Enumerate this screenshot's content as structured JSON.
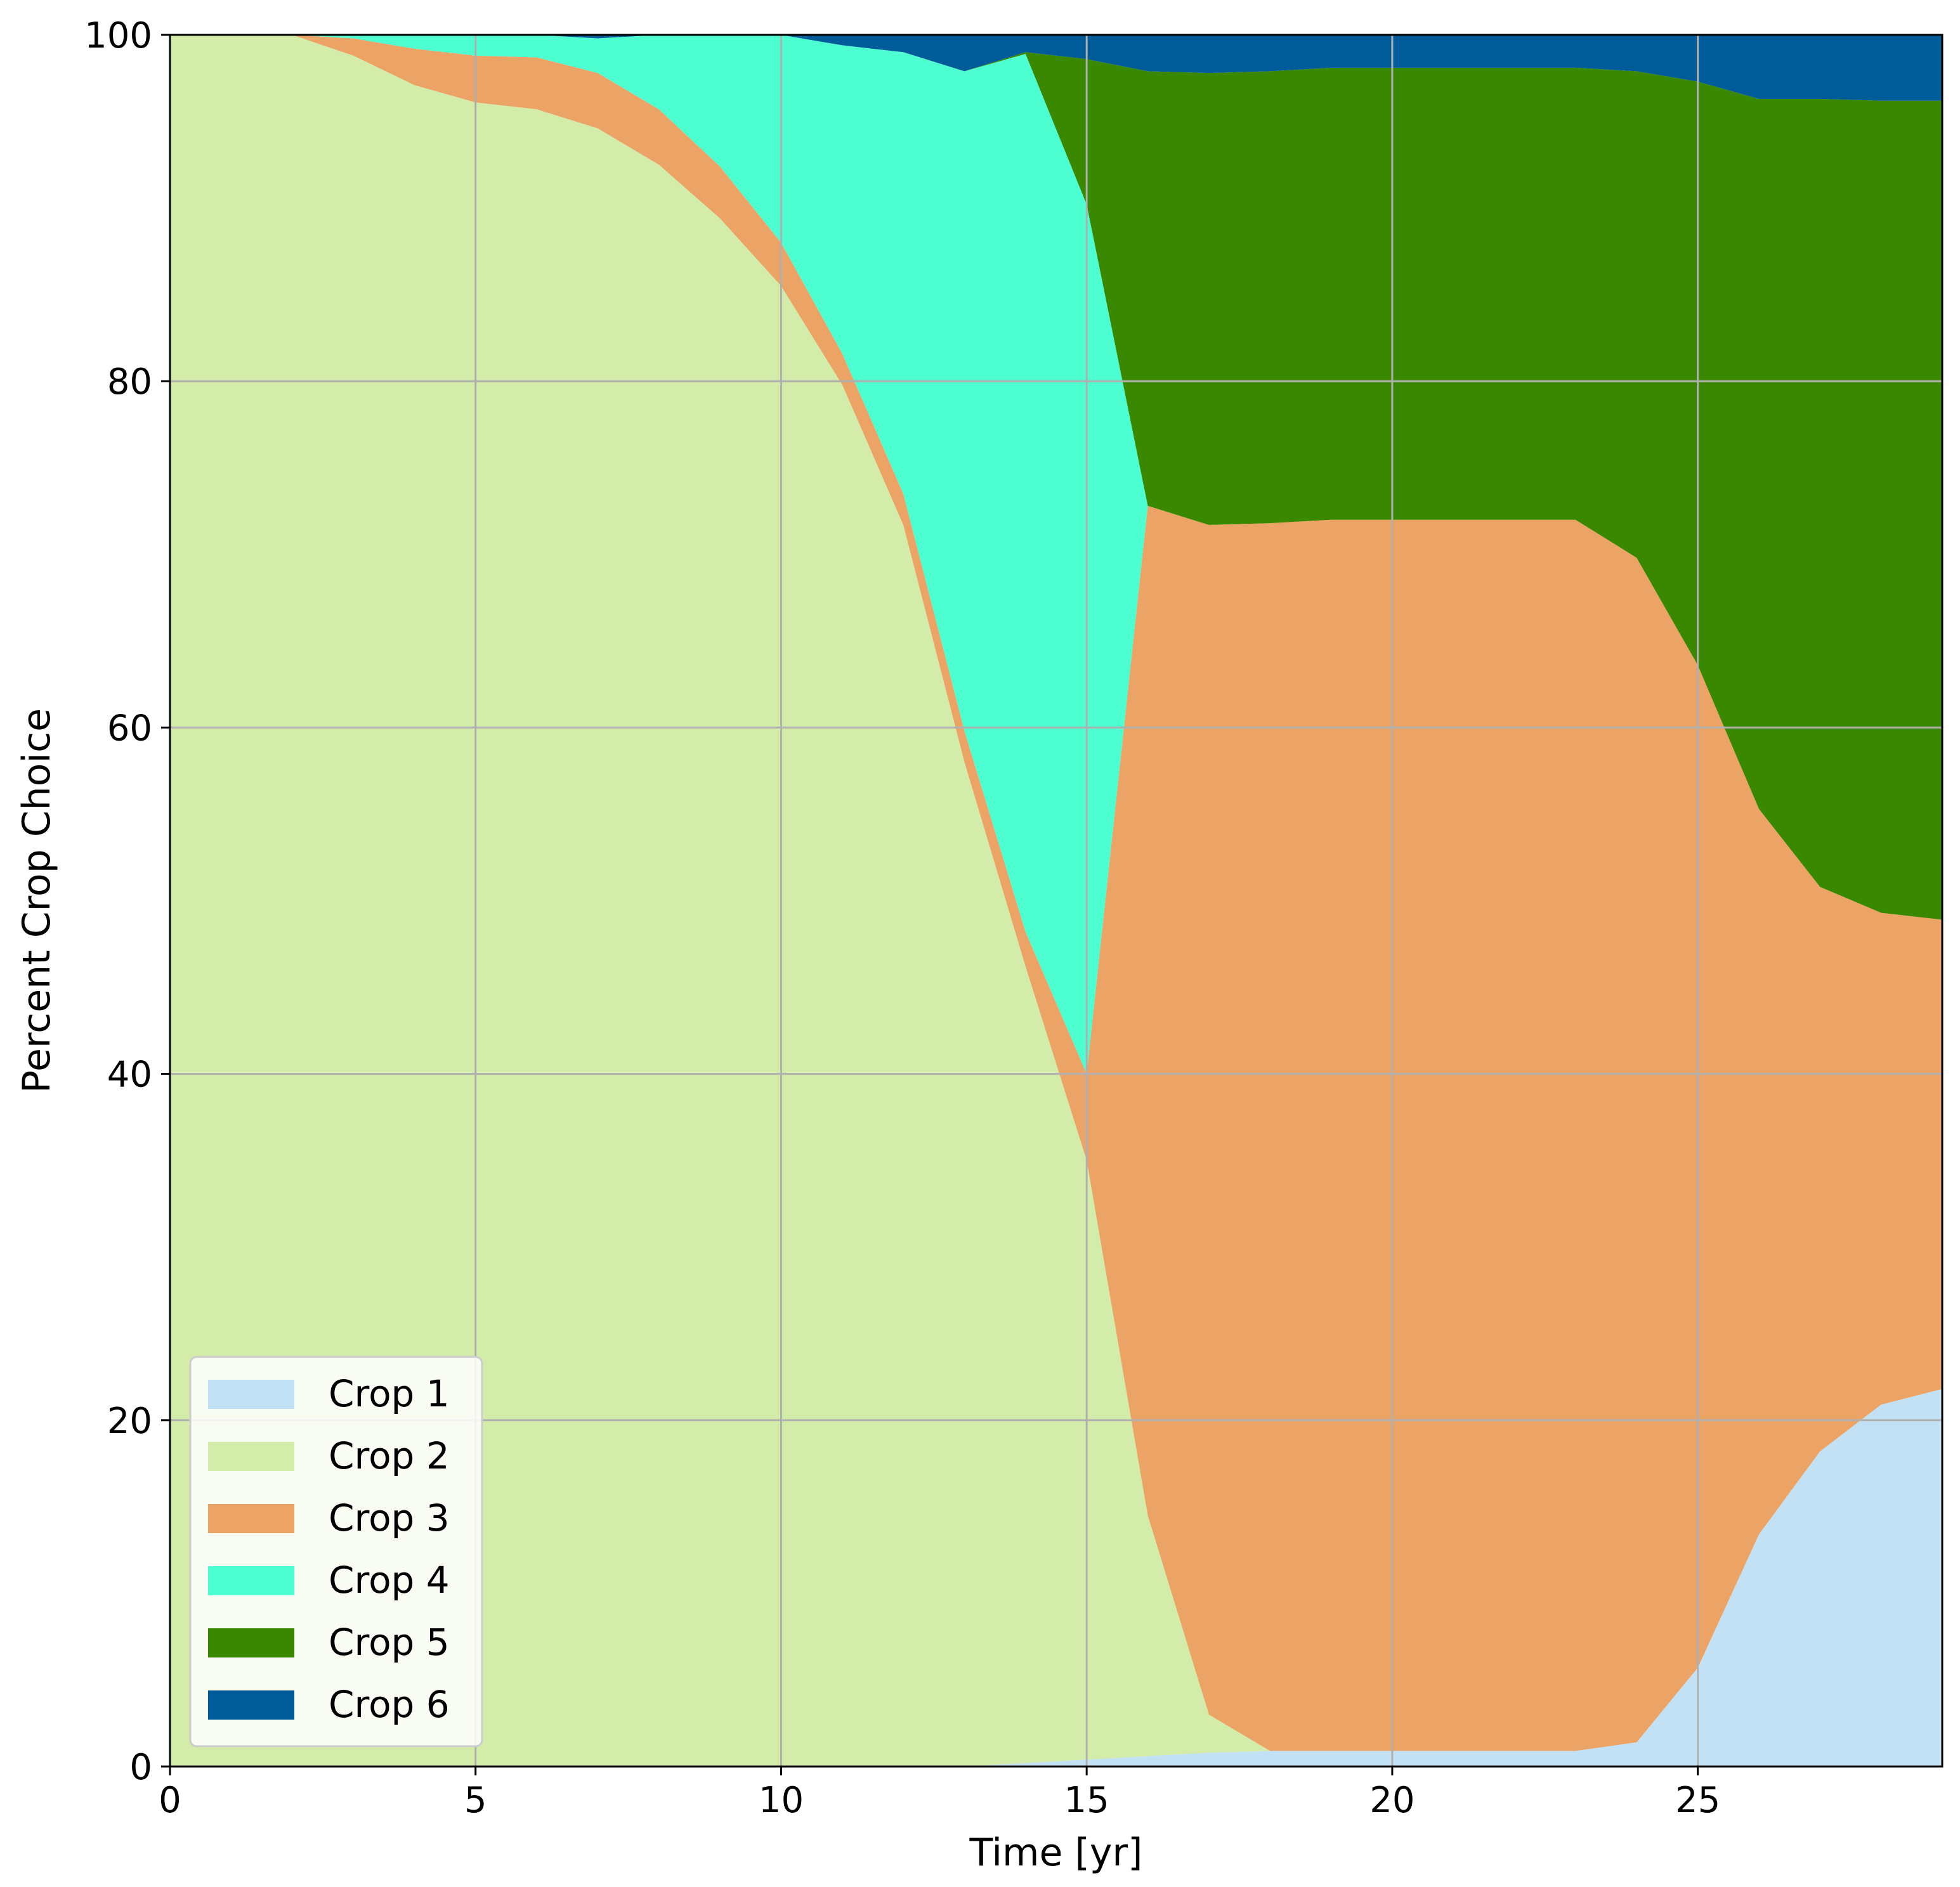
{
  "chart_data": {
    "type": "area",
    "stacked": true,
    "title": "",
    "xlabel": "Time [yr]",
    "ylabel": "Percent Crop Choice",
    "xlim": [
      0,
      29
    ],
    "ylim": [
      0,
      100
    ],
    "xticks": [
      0,
      5,
      10,
      15,
      20,
      25
    ],
    "yticks": [
      0,
      20,
      40,
      60,
      80,
      100
    ],
    "grid": true,
    "legend_position": "lower-left",
    "x": [
      0,
      1,
      2,
      3,
      4,
      5,
      6,
      7,
      8,
      9,
      10,
      11,
      12,
      13,
      14,
      15,
      16,
      17,
      18,
      19,
      20,
      21,
      22,
      23,
      24,
      25,
      26,
      27,
      28,
      29
    ],
    "series": [
      {
        "name": "Crop 1",
        "color": "#c2e1f4",
        "values": [
          0,
          0,
          0,
          0,
          0,
          0,
          0,
          0,
          0,
          0,
          0,
          0,
          0,
          0,
          0.2,
          0.4,
          0.6,
          0.8,
          0.9,
          0.9,
          0.9,
          0.9,
          0.9,
          0.9,
          1.4,
          5.7,
          13.4,
          18.2,
          20.9,
          21.8
        ]
      },
      {
        "name": "Crop 2",
        "color": "#d3eca9",
        "values": [
          100,
          100,
          100,
          98.8,
          97.1,
          96.1,
          95.7,
          94.6,
          92.5,
          89.4,
          85.5,
          79.8,
          71.7,
          58.0,
          46.0,
          34.6,
          13.9,
          2.2,
          0,
          0,
          0,
          0,
          0,
          0,
          0,
          0,
          0,
          0,
          0,
          0
        ]
      },
      {
        "name": "Crop 3",
        "color": "#eca466",
        "values": [
          0,
          0,
          0,
          1.0,
          2.1,
          2.7,
          3.0,
          3.2,
          3.2,
          3.0,
          2.5,
          1.8,
          1.8,
          1.8,
          2.0,
          5.0,
          58.3,
          68.7,
          70.9,
          71.1,
          71.1,
          71.1,
          71.1,
          71.1,
          68.4,
          57.9,
          41.9,
          32.6,
          28.4,
          27.1
        ]
      },
      {
        "name": "Crop 4",
        "color": "#4cfed0",
        "values": [
          0,
          0,
          0,
          0.2,
          0.8,
          1.2,
          1.3,
          2.0,
          4.3,
          7.6,
          12.0,
          17.8,
          25.5,
          38.1,
          50.7,
          50.2,
          0,
          0,
          0,
          0,
          0,
          0,
          0,
          0,
          0,
          0,
          0,
          0,
          0,
          0
        ]
      },
      {
        "name": "Crop 5",
        "color": "#3a8800",
        "values": [
          0,
          0,
          0,
          0,
          0,
          0,
          0,
          0,
          0,
          0,
          0,
          0,
          0,
          0,
          0.1,
          8.4,
          25.1,
          26.1,
          26.1,
          26.1,
          26.1,
          26.1,
          26.1,
          26.1,
          28.1,
          33.7,
          41.0,
          45.5,
          46.9,
          47.3
        ]
      },
      {
        "name": "Crop 6",
        "color": "#005c99",
        "values": [
          0,
          0,
          0,
          0,
          0,
          0,
          0,
          0.2,
          0,
          0,
          0,
          0.6,
          1.0,
          2.1,
          1.0,
          1.4,
          2.1,
          2.2,
          2.1,
          1.9,
          1.9,
          1.9,
          1.9,
          1.9,
          2.1,
          2.7,
          3.7,
          3.7,
          3.8,
          3.8
        ]
      }
    ]
  }
}
